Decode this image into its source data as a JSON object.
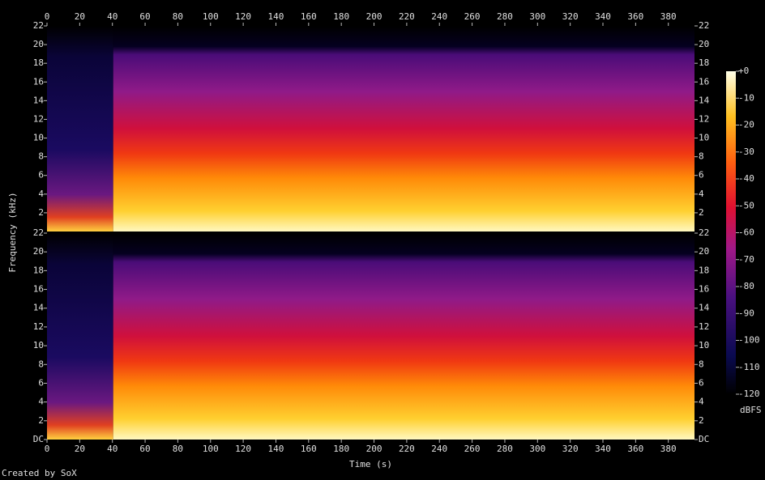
{
  "chart_data": [
    {
      "type": "spectrogram",
      "ylabel": "Frequency (kHz)",
      "xlim": [
        0,
        396
      ],
      "xticks": [
        0,
        20,
        40,
        60,
        80,
        100,
        120,
        140,
        160,
        180,
        200,
        220,
        240,
        260,
        280,
        300,
        320,
        340,
        360,
        380
      ],
      "ylim": [
        0,
        22
      ],
      "yticks": [
        2,
        4,
        6,
        8,
        10,
        12,
        14,
        16,
        18,
        20,
        22
      ]
    },
    {
      "type": "spectrogram",
      "xlabel": "Time (s)",
      "xlim": [
        0,
        396
      ],
      "xticks": [
        0,
        20,
        40,
        60,
        80,
        100,
        120,
        140,
        160,
        180,
        200,
        220,
        240,
        260,
        280,
        300,
        320,
        340,
        360,
        380
      ],
      "ylim": [
        0,
        22
      ],
      "yticks": [
        {
          "value": 0,
          "label": "DC"
        },
        2,
        4,
        6,
        8,
        10,
        12,
        14,
        16,
        18,
        20,
        22
      ]
    }
  ],
  "colorbar": {
    "label": "dBFS",
    "lim": [
      -120,
      0
    ],
    "ticks": [
      {
        "value": 0,
        "label": "+0"
      },
      -10,
      -20,
      -30,
      -40,
      -50,
      -60,
      -70,
      -80,
      -90,
      -100,
      -110,
      -120
    ]
  },
  "footer": "Created by SoX"
}
